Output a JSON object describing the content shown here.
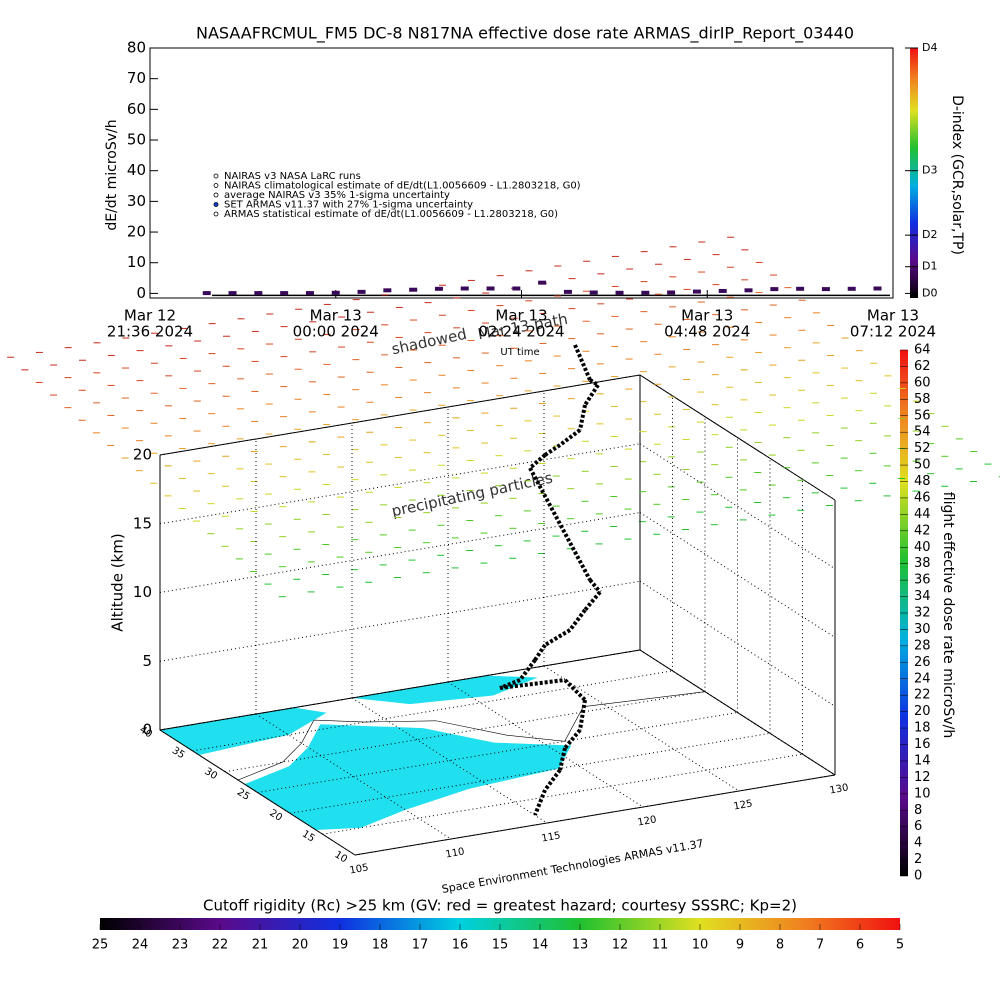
{
  "chart_data": [
    {
      "type": "line",
      "title": "NASAAFRCMUL_FM5 DC-8    N817NA effective dose rate ARMAS_dirIP_Report_03440",
      "y_label": "dE/dt microSv/h",
      "x_label": "UT time",
      "legend": [
        "NAIRAS v3 NASA LaRC runs",
        "NAIRAS climatological estimate of dE/dt(L1.0056609 - L1.2803218, G0)",
        "average NAIRAS v3 35% 1-sigma uncertainty",
        "SET ARMAS v11.37 with 27% 1-sigma uncertainty",
        "ARMAS statistical estimate of dE/dt(L1.0056609 - L1.2803218, G0)"
      ],
      "xlim": [
        "2024-03-12T21:36",
        "2024-03-13T07:12"
      ],
      "xticks": [
        {
          "value": "2024-03-12T21:36",
          "label": [
            "Mar 12",
            "21:36 2024"
          ]
        },
        {
          "value": "2024-03-13T00:00",
          "label": [
            "Mar 13",
            "00:00 2024"
          ]
        },
        {
          "value": "2024-03-13T02:24",
          "label": [
            "Mar 13",
            "02:24 2024"
          ]
        },
        {
          "value": "2024-03-13T04:48",
          "label": [
            "Mar 13",
            "04:48 2024"
          ]
        },
        {
          "value": "2024-03-13T07:12",
          "label": [
            "Mar 13",
            "07:12 2024"
          ]
        }
      ],
      "ylim": [
        -1.5,
        80
      ],
      "yticks": [
        0,
        10,
        20,
        30,
        40,
        50,
        60,
        70,
        80
      ],
      "y2_label": "D-index (GCR,solar,TP)",
      "y2lim": [
        -1.5,
        80
      ],
      "y2ticks": [
        {
          "value": 0,
          "label": "D0"
        },
        {
          "value": 8.7,
          "label": "D1"
        },
        {
          "value": 19,
          "label": "D2"
        },
        {
          "value": 40,
          "label": "D3"
        },
        {
          "value": 80,
          "label": "D4"
        }
      ],
      "x": [
        "2024-03-12T22:20",
        "2024-03-12T22:40",
        "2024-03-12T23:00",
        "2024-03-12T23:20",
        "2024-03-12T23:40",
        "2024-03-13T00:00",
        "2024-03-13T00:20",
        "2024-03-13T00:40",
        "2024-03-13T01:00",
        "2024-03-13T01:20",
        "2024-03-13T01:40",
        "2024-03-13T02:00",
        "2024-03-13T02:20",
        "2024-03-13T02:40",
        "2024-03-13T03:00",
        "2024-03-13T03:20",
        "2024-03-13T03:40",
        "2024-03-13T04:00",
        "2024-03-13T04:20",
        "2024-03-13T04:40",
        "2024-03-13T05:00",
        "2024-03-13T05:20",
        "2024-03-13T05:40",
        "2024-03-13T06:00",
        "2024-03-13T06:20",
        "2024-03-13T06:40",
        "2024-03-13T07:00"
      ],
      "series": [
        {
          "name": "ARMAS statistical estimate of dE/dt(L1.0056609 - L1.2803218, G0)",
          "color": "#3a0a5a",
          "values": [
            0.1,
            0.1,
            0.1,
            0.1,
            0.1,
            0.2,
            0.5,
            1.0,
            1.2,
            1.5,
            1.6,
            1.6,
            1.6,
            3.5,
            0.5,
            0.3,
            0.2,
            0.2,
            0.3,
            0.6,
            0.8,
            1.0,
            1.4,
            1.5,
            1.4,
            1.5,
            1.6
          ]
        }
      ]
    },
    {
      "type": "surface3d",
      "z_label": "Altitude (km)",
      "zlim": [
        0,
        20
      ],
      "zticks": [
        0,
        5,
        10,
        15,
        20
      ],
      "ylim": [
        40,
        10
      ],
      "yticks": [
        40,
        35,
        30,
        25,
        20,
        15,
        10
      ],
      "xlim": [
        105,
        130
      ],
      "xticks": [
        105,
        110,
        115,
        120,
        125,
        130
      ],
      "annotations": [
        "shadowed",
        "Mar 13 path",
        "precipitating particles"
      ],
      "credit": "Space Environment Technologies ARMAS v11.37"
    },
    {
      "type": "colorbar",
      "label": "flight effective dose rate microSv/h",
      "clim": [
        0,
        64
      ],
      "ticks": [
        0,
        2,
        4,
        6,
        8,
        10,
        12,
        14,
        16,
        18,
        20,
        22,
        24,
        26,
        28,
        30,
        32,
        34,
        36,
        38,
        40,
        42,
        44,
        46,
        48,
        50,
        52,
        54,
        56,
        58,
        60,
        62,
        64
      ]
    },
    {
      "type": "colorbar",
      "label": "Cutoff rigidity (Rc) >25 km (GV: red = greatest hazard; courtesy SSSRC; Kp=2)",
      "clim": [
        25,
        5
      ],
      "ticks": [
        25,
        24,
        23,
        22,
        21,
        20,
        19,
        18,
        17,
        16,
        15,
        14,
        13,
        12,
        11,
        10,
        9,
        8,
        7,
        6,
        5
      ]
    }
  ]
}
